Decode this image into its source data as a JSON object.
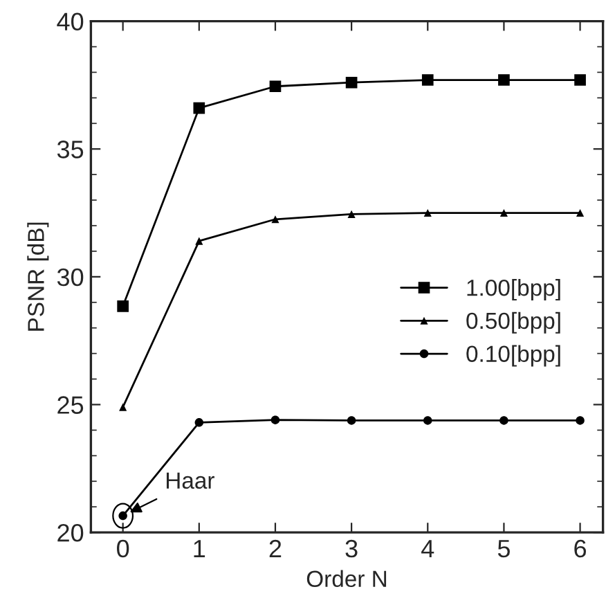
{
  "chart_data": {
    "type": "line",
    "xlabel": "Order N",
    "ylabel": "PSNR [dB]",
    "x": [
      0,
      1,
      2,
      3,
      4,
      5,
      6
    ],
    "series": [
      {
        "name": "1.00[bpp]",
        "color": "#000000",
        "marker": "square",
        "values": [
          28.85,
          36.6,
          37.45,
          37.6,
          37.7,
          37.7,
          37.7
        ]
      },
      {
        "name": "0.50[bpp]",
        "color": "#000000",
        "marker": "triangle",
        "values": [
          24.9,
          31.4,
          32.25,
          32.45,
          32.5,
          32.5,
          32.5
        ]
      },
      {
        "name": "0.10[bpp]",
        "color": "#000000",
        "marker": "circle",
        "values": [
          20.65,
          24.3,
          24.4,
          24.38,
          24.38,
          24.38,
          24.38
        ]
      }
    ],
    "xlim": [
      -0.42,
      6.3
    ],
    "ylim": [
      20,
      40
    ],
    "xticks": [
      0,
      1,
      2,
      3,
      4,
      5,
      6
    ],
    "yticks": [
      20,
      25,
      30,
      35,
      40
    ],
    "annotations": [
      {
        "text": "Haar",
        "x": 0,
        "y": 20.65
      }
    ],
    "legend": "center right",
    "grid": false,
    "line_style": "solid"
  }
}
